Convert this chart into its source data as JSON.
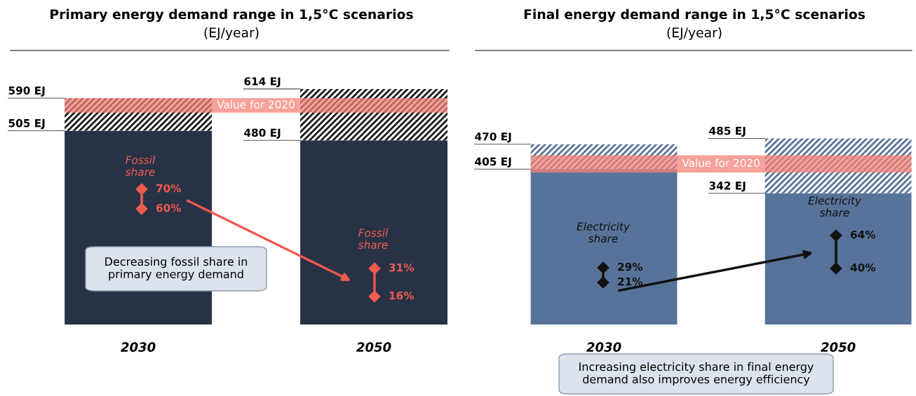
{
  "chart_data": [
    {
      "type": "bar",
      "title": "Primary energy demand range in 1,5°C scenarios",
      "subtitle": "(EJ/year)",
      "categories": [
        "2030",
        "2050"
      ],
      "stacked": true,
      "series": [
        {
          "color": "#283246",
          "values": [
            505,
            480
          ],
          "value_labels": [
            "505 EJ",
            "480 EJ"
          ]
        },
        {
          "color": "#1a1a1a",
          "values": [
            85,
            134
          ]
        }
      ],
      "bands": [
        {
          "axis": "y",
          "from": 552,
          "to": 590,
          "label": "Value for 2020",
          "color": "#f4827a"
        }
      ],
      "annotations": [
        "590 EJ",
        "614 EJ",
        "Fossil\nshare",
        "70%",
        "60%",
        "Fossil\nshare",
        "31%",
        "16%",
        "Decreasing fossil share in\nprimary energy demand"
      ]
    },
    {
      "type": "bar",
      "title": "Final energy demand range in 1,5°C scenarios",
      "subtitle": "(EJ/year)",
      "categories": [
        "2030",
        "2050"
      ],
      "stacked": true,
      "series": [
        {
          "color": "#587399",
          "values": [
            405,
            342
          ],
          "value_labels": [
            "405 EJ",
            "342 EJ"
          ]
        },
        {
          "color": "#587399",
          "values": [
            65,
            143
          ]
        }
      ],
      "bands": [
        {
          "axis": "y",
          "from": 396,
          "to": 441,
          "label": "Value for 2020",
          "color": "#f4827a"
        }
      ],
      "annotations": [
        "470 EJ",
        "485 EJ",
        "Electricity\nshare",
        "29%",
        "21%",
        "Electricity\nshare",
        "64%",
        "40%",
        "Increasing electricity share in final energy\ndemand also improves energy efficiency"
      ]
    }
  ]
}
